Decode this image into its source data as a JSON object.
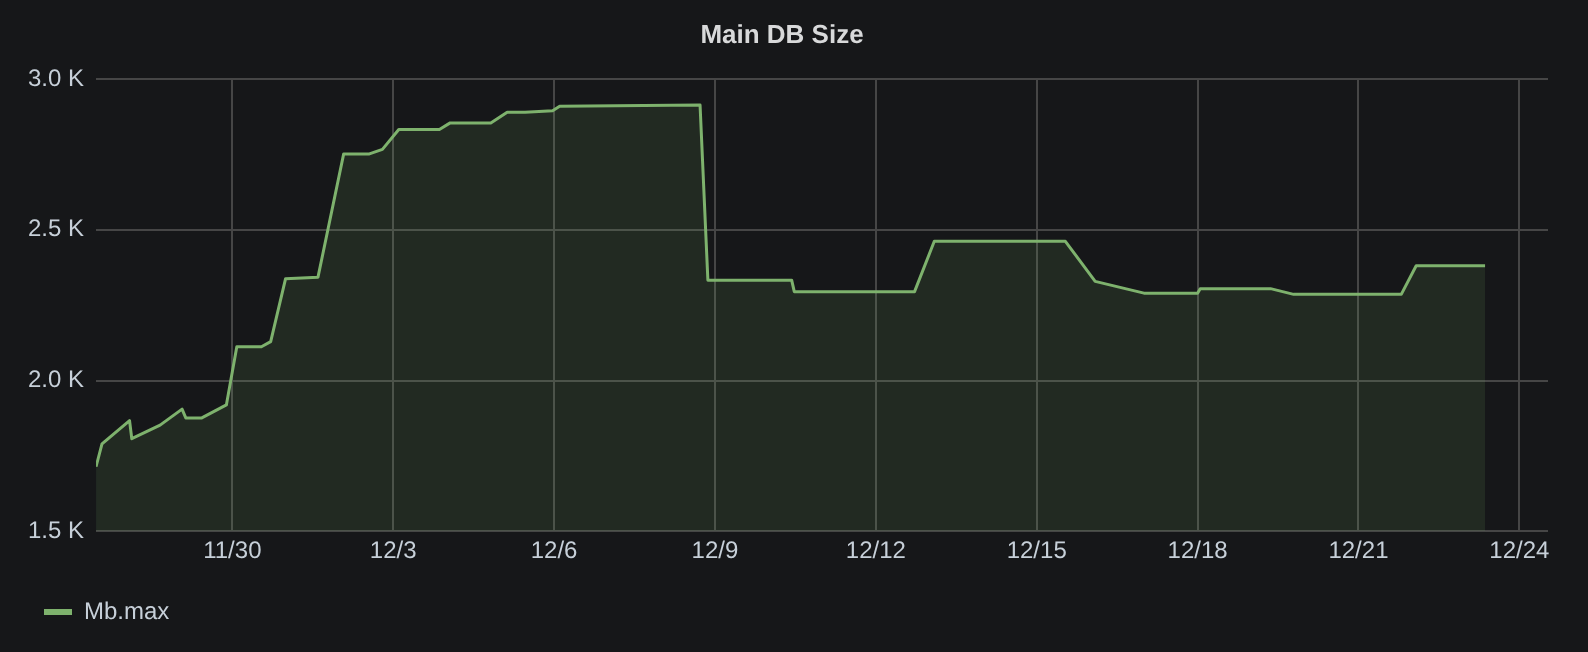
{
  "chart_data": {
    "type": "area",
    "title": "Main DB Size",
    "x": [
      "--11-27T11:00",
      "--11-27T13:40",
      "--11-28T02:00",
      "--11-28T03:00",
      "--11-28T15:40",
      "--11-29T01:30",
      "--11-29T03:10",
      "--11-29T10:20",
      "--11-29T21:20",
      "--11-30T02:00",
      "--11-30T13:00",
      "--11-30T17:10",
      "--11-30T23:50",
      "--12-01T14:20",
      "--12-02T01:50",
      "--12-02T13:20",
      "--12-02T19:10",
      "--12-03T02:30",
      "--12-03T20:40",
      "--12-04T01:30",
      "--12-04T19:40",
      "--12-05T03:00",
      "--12-05T11:00",
      "--12-05T23:20",
      "--12-06T02:30",
      "--12-08T17:20",
      "--12-08T20:50",
      "--12-10T10:20",
      "--12-10T11:30",
      "--12-12T17:20",
      "--12-13T02:10",
      "--12-15T12:50",
      "--12-16T02:10",
      "--12-17T00:00",
      "--12-18T00:00",
      "--12-18T01:10",
      "--12-19T08:40",
      "--12-19T19:00",
      "--12-21T19:10",
      "--12-22T01:50",
      "--12-23T08:40"
    ],
    "series": [
      {
        "name": "Mb.max",
        "color": "#7eb26d",
        "values": [
          1714,
          1790,
          1867,
          1807,
          1852,
          1905,
          1876,
          1876,
          1919,
          2112,
          2112,
          2129,
          2338,
          2343,
          2752,
          2752,
          2767,
          2833,
          2833,
          2855,
          2855,
          2890,
          2890,
          2895,
          2910,
          2914,
          2333,
          2333,
          2295,
          2295,
          2462,
          2462,
          2329,
          2290,
          2290,
          2305,
          2305,
          2286,
          2286,
          2381,
          2381
        ]
      }
    ],
    "xlim": [
      "--11-27T11:00",
      "--12-24T12:50"
    ],
    "xticks": [
      {
        "value": "--11-30",
        "label": "11/30"
      },
      {
        "value": "--12-03",
        "label": "12/3"
      },
      {
        "value": "--12-06",
        "label": "12/6"
      },
      {
        "value": "--12-09",
        "label": "12/9"
      },
      {
        "value": "--12-12",
        "label": "12/12"
      },
      {
        "value": "--12-15",
        "label": "12/15"
      },
      {
        "value": "--12-18",
        "label": "12/18"
      },
      {
        "value": "--12-21",
        "label": "12/21"
      },
      {
        "value": "--12-24",
        "label": "12/24"
      }
    ],
    "ylim": [
      1500,
      3000
    ],
    "yticks": [
      {
        "value": 1500,
        "label": "1.5 K"
      },
      {
        "value": 2000,
        "label": "2.0 K"
      },
      {
        "value": 2500,
        "label": "2.5 K"
      },
      {
        "value": 3000,
        "label": "3.0 K"
      }
    ],
    "grid": true,
    "legend": "bottom left",
    "marker": "none",
    "line_style": "solid"
  }
}
